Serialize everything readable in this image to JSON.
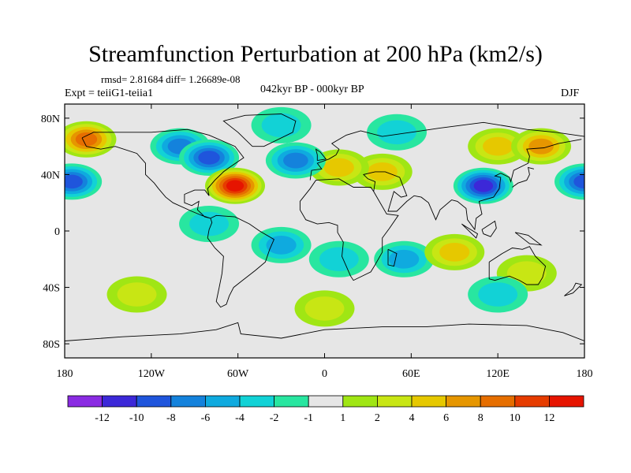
{
  "title": "Streamfunction Perturbation at 200 hPa (km2/s)",
  "stats": "rmsd= 2.81684 diff= 1.26689e-08",
  "experiment": "Expt = teiiG1-teiia1",
  "period": "042kyr BP - 000kyr BP",
  "season": "DJF",
  "map": {
    "projection": "cylindrical equidistant",
    "lon_range": [
      -180,
      180
    ],
    "lat_range": [
      -90,
      90
    ],
    "lat_ticks": [
      {
        "lat": 80,
        "label": "80N"
      },
      {
        "lat": 40,
        "label": "40N"
      },
      {
        "lat": 0,
        "label": "0"
      },
      {
        "lat": -40,
        "label": "40S"
      },
      {
        "lat": -80,
        "label": "80S"
      }
    ],
    "lon_ticks": [
      {
        "lon": -180,
        "label": "180"
      },
      {
        "lon": -120,
        "label": "120W"
      },
      {
        "lon": -60,
        "label": "60W"
      },
      {
        "lon": 0,
        "label": "0"
      },
      {
        "lon": 60,
        "label": "60E"
      },
      {
        "lon": 120,
        "label": "120E"
      },
      {
        "lon": 180,
        "label": "180"
      }
    ]
  },
  "colorbar": {
    "labels": [
      "-12",
      "-10",
      "-8",
      "-6",
      "-4",
      "-2",
      "-1",
      "1",
      "2",
      "4",
      "6",
      "8",
      "10",
      "12"
    ],
    "colors": [
      "#8a2be2",
      "#3c28d8",
      "#1f55dc",
      "#1482dc",
      "#0faadf",
      "#12d2d6",
      "#28e6a0",
      "#e6e6e6",
      "#a0e614",
      "#c8e614",
      "#e6c800",
      "#e69600",
      "#e66e00",
      "#e63c00",
      "#e61400"
    ]
  },
  "chart_data": {
    "type": "heatmap",
    "field": "streamfunction perturbation",
    "units": "km2/s",
    "features": [
      {
        "lon": -175,
        "lat": 35,
        "value": -8
      },
      {
        "lon": 180,
        "lat": 35,
        "value": -8
      },
      {
        "lon": -165,
        "lat": 65,
        "value": 8
      },
      {
        "lon": -100,
        "lat": 60,
        "value": -6
      },
      {
        "lon": -80,
        "lat": 52,
        "value": -9
      },
      {
        "lon": -30,
        "lat": 75,
        "value": -3
      },
      {
        "lon": -20,
        "lat": 50,
        "value": -7
      },
      {
        "lon": -62,
        "lat": 32,
        "value": 12
      },
      {
        "lon": 10,
        "lat": 45,
        "value": 5
      },
      {
        "lon": 40,
        "lat": 42,
        "value": 4
      },
      {
        "lon": 50,
        "lat": 70,
        "value": -3
      },
      {
        "lon": 110,
        "lat": 32,
        "value": -10
      },
      {
        "lon": 150,
        "lat": 60,
        "value": 7
      },
      {
        "lon": 120,
        "lat": 60,
        "value": 4
      },
      {
        "lon": -30,
        "lat": -10,
        "value": -4
      },
      {
        "lon": 10,
        "lat": -20,
        "value": -3
      },
      {
        "lon": 55,
        "lat": -20,
        "value": -4
      },
      {
        "lon": -80,
        "lat": 5,
        "value": -3
      },
      {
        "lon": 90,
        "lat": -15,
        "value": 5
      },
      {
        "lon": 140,
        "lat": -30,
        "value": 2
      },
      {
        "lon": -130,
        "lat": -45,
        "value": 2
      },
      {
        "lon": 120,
        "lat": -45,
        "value": -3
      },
      {
        "lon": 0,
        "lat": -55,
        "value": 3
      }
    ]
  }
}
